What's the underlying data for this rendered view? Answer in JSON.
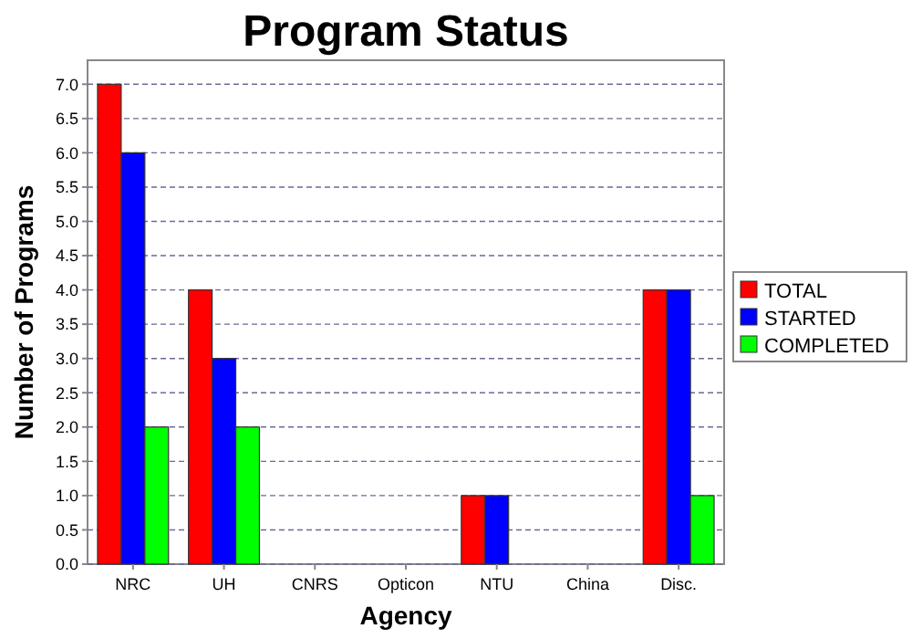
{
  "chart_data": {
    "type": "bar",
    "title": "Program Status",
    "xlabel": "Agency",
    "ylabel": "Number of Programs",
    "categories": [
      "NRC",
      "UH",
      "CNRS",
      "Opticon",
      "NTU",
      "China",
      "Disc."
    ],
    "series": [
      {
        "name": "TOTAL",
        "color": "#ff0000",
        "values": [
          7,
          4,
          0,
          0,
          1,
          0,
          4
        ]
      },
      {
        "name": "STARTED",
        "color": "#0000ff",
        "values": [
          6,
          3,
          0,
          0,
          1,
          0,
          4
        ]
      },
      {
        "name": "COMPLETED",
        "color": "#00ff00",
        "values": [
          2,
          2,
          0,
          0,
          0,
          0,
          1
        ]
      }
    ],
    "ylim": [
      0,
      7.35
    ],
    "yticks": [
      {
        "value": 0,
        "label": "0.0"
      },
      {
        "value": 0.5,
        "label": "0.5"
      },
      {
        "value": 1,
        "label": "1.0"
      },
      {
        "value": 1.5,
        "label": "1.5"
      },
      {
        "value": 2,
        "label": "2.0"
      },
      {
        "value": 2.5,
        "label": "2.5"
      },
      {
        "value": 3,
        "label": "3.0"
      },
      {
        "value": 3.5,
        "label": "3.5"
      },
      {
        "value": 4,
        "label": "4.0"
      },
      {
        "value": 4.5,
        "label": "4.5"
      },
      {
        "value": 5,
        "label": "5.0"
      },
      {
        "value": 5.5,
        "label": "5.5"
      },
      {
        "value": 6,
        "label": "6.0"
      },
      {
        "value": 6.5,
        "label": "6.5"
      },
      {
        "value": 7,
        "label": "7.0"
      }
    ],
    "grid": "y",
    "legend": "right"
  }
}
